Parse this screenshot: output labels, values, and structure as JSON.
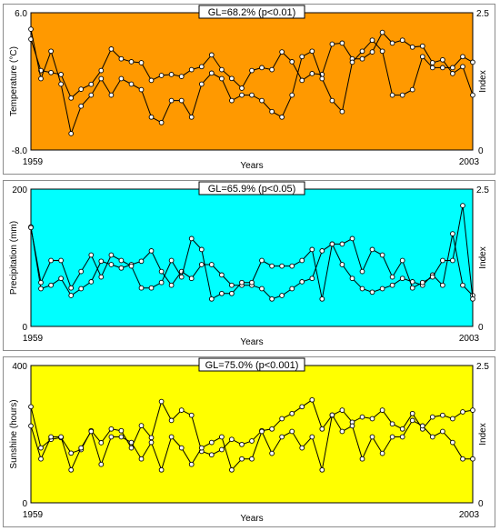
{
  "chart_data": [
    {
      "type": "line",
      "title": "GL=68.2% (p<0.01)",
      "xlabel": "Years",
      "ylabel": "Temperature (°C)",
      "y2label": "Index",
      "background": "#ff9900",
      "ylim": [
        -8.0,
        6.0
      ],
      "y2lim": [
        0,
        2.5
      ],
      "yticks": [
        "6.0",
        "-8.0"
      ],
      "y2ticks": [
        "2.5",
        "0"
      ],
      "xticks": [
        "1959",
        "2003"
      ],
      "x_start": 1959,
      "x_end": 2003,
      "series": [
        {
          "axis": "left",
          "values": [
            3.3,
            0.1,
            -0.1,
            -0.3,
            -2.7,
            -1.8,
            -1.3,
            0.1,
            2.3,
            1.3,
            1.0,
            0.9,
            -0.9,
            -0.4,
            -0.3,
            -0.5,
            0.2,
            0.5,
            1.7,
            0.2,
            -0.7,
            -1.7,
            0.1,
            0.4,
            0.2,
            2.0,
            1.0,
            -0.9,
            -0.2,
            -0.3,
            2.8,
            2.9,
            1.3,
            1.3,
            2.0,
            4.0,
            2.9,
            3.2,
            2.5,
            2.6,
            0.9,
            1.2,
            -0.2,
            0.5,
            -2.4
          ]
        },
        {
          "axis": "right",
          "values": [
            2.2,
            1.3,
            1.8,
            1.2,
            0.3,
            0.8,
            1.0,
            1.3,
            1.0,
            1.3,
            1.2,
            1.1,
            0.6,
            0.5,
            0.9,
            0.9,
            0.6,
            1.2,
            1.4,
            1.3,
            0.9,
            1.0,
            1.0,
            0.9,
            0.7,
            0.6,
            1.0,
            1.7,
            1.8,
            1.3,
            0.9,
            0.7,
            1.6,
            1.8,
            2.0,
            1.8,
            1.0,
            1.0,
            1.1,
            1.7,
            1.5,
            1.5,
            1.5,
            1.7,
            1.6
          ]
        }
      ]
    },
    {
      "type": "line",
      "title": "GL=65.9% (p<0.05)",
      "xlabel": "Years",
      "ylabel": "Precipitation (mm)",
      "y2label": "Index",
      "background": "#00ffff",
      "ylim": [
        0,
        200
      ],
      "y2lim": [
        0,
        2.5
      ],
      "yticks": [
        "200",
        "0"
      ],
      "y2ticks": [
        "2.5",
        "0"
      ],
      "xticks": [
        "1959",
        "2003"
      ],
      "x_start": 1959,
      "x_end": 2003,
      "series": [
        {
          "axis": "left",
          "values": [
            145,
            55,
            60,
            70,
            45,
            55,
            65,
            95,
            90,
            85,
            90,
            95,
            110,
            80,
            60,
            80,
            70,
            90,
            90,
            75,
            60,
            60,
            60,
            55,
            40,
            45,
            55,
            65,
            70,
            110,
            120,
            90,
            70,
            55,
            50,
            55,
            60,
            70,
            65,
            60,
            75,
            60,
            135,
            60,
            45
          ]
        },
        {
          "axis": "right",
          "values": [
            1.8,
            0.8,
            1.2,
            1.2,
            0.7,
            1.0,
            1.3,
            0.9,
            1.3,
            1.2,
            1.1,
            0.7,
            0.7,
            0.8,
            1.2,
            0.9,
            1.6,
            1.4,
            0.5,
            0.6,
            0.6,
            0.8,
            0.8,
            1.2,
            1.1,
            1.1,
            1.1,
            1.2,
            1.4,
            0.5,
            1.5,
            1.5,
            1.6,
            1.0,
            1.4,
            1.3,
            0.9,
            1.2,
            0.7,
            0.8,
            0.9,
            1.2,
            1.2,
            2.2,
            0.5
          ]
        }
      ]
    },
    {
      "type": "line",
      "title": "GL=75.0% (p<0.001)",
      "xlabel": "Years",
      "ylabel": "Sunshine (hours)",
      "y2label": "Index",
      "background": "#ffff00",
      "ylim": [
        0,
        400
      ],
      "y2lim": [
        0,
        2.5
      ],
      "yticks": [
        "400",
        "0"
      ],
      "y2ticks": [
        "2.5",
        "0"
      ],
      "xticks": [
        "1959",
        "2003"
      ],
      "x_start": 1959,
      "x_end": 2003,
      "series": [
        {
          "axis": "left",
          "values": [
            280,
            160,
            185,
            190,
            145,
            155,
            210,
            175,
            215,
            210,
            160,
            225,
            190,
            295,
            240,
            270,
            255,
            150,
            140,
            155,
            185,
            170,
            180,
            210,
            215,
            245,
            260,
            280,
            300,
            215,
            255,
            270,
            235,
            250,
            245,
            270,
            230,
            215,
            260,
            215,
            250,
            255,
            245,
            265,
            270
          ]
        },
        {
          "axis": "right",
          "values": [
            1.4,
            0.8,
            1.2,
            1.2,
            0.6,
            1.0,
            1.3,
            0.7,
            1.2,
            1.2,
            1.1,
            0.8,
            1.1,
            0.6,
            1.2,
            1.0,
            0.7,
            1.0,
            1.1,
            1.2,
            0.6,
            0.8,
            0.8,
            1.3,
            0.9,
            1.2,
            1.3,
            1.0,
            1.2,
            0.6,
            1.6,
            1.3,
            1.4,
            0.8,
            1.2,
            0.9,
            1.2,
            1.2,
            1.5,
            1.4,
            1.2,
            1.3,
            1.1,
            0.8,
            0.8
          ]
        }
      ]
    }
  ]
}
